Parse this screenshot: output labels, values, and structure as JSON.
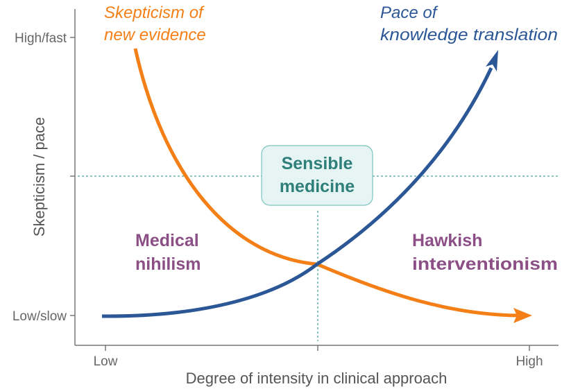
{
  "y_axis": {
    "title": "Skepticism / pace",
    "ticks": [
      "High/fast",
      "",
      "Low/slow"
    ]
  },
  "x_axis": {
    "title": "Degree of intensity in clinical approach",
    "ticks": [
      "Low",
      "",
      "High"
    ]
  },
  "curves": {
    "skepticism": {
      "label_line1": "Skepticism of",
      "label_line2": "new evidence",
      "color": "#f57f17",
      "trend": "decreasing"
    },
    "pace": {
      "label_line1": "Pace of",
      "label_line2": "knowledge translation",
      "color": "#2b5797",
      "trend": "increasing"
    }
  },
  "regions": {
    "left": {
      "line1": "Medical",
      "line2": "nihilism",
      "color": "#8b4f86"
    },
    "right": {
      "line1": "Hawkish",
      "line2": "interventionism",
      "color": "#8b4f86"
    },
    "center": {
      "line1": "Sensible",
      "line2": "medicine",
      "color": "#2e7f7a",
      "box_fill": "#e6f5f3"
    }
  }
}
